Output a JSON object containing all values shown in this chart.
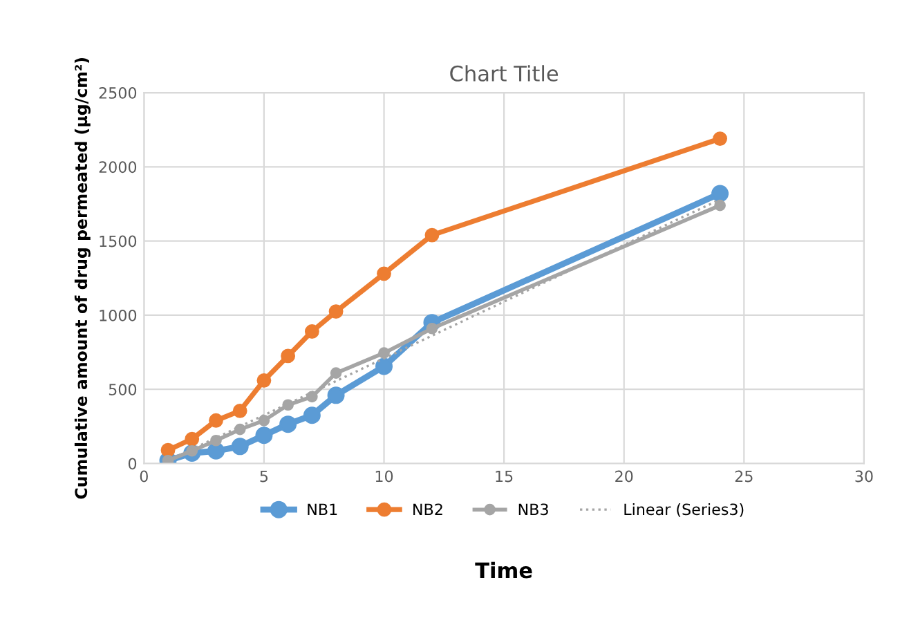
{
  "chart_data": {
    "type": "line",
    "title": "Chart Title",
    "xlabel": "Time",
    "ylabel": "Cumulative amount of drug permeated (µg/cm²)",
    "x": [
      1,
      2,
      3,
      4,
      5,
      6,
      7,
      8,
      10,
      12,
      24
    ],
    "series": [
      {
        "name": "NB1",
        "color": "#5b9bd5",
        "values": [
          20,
          70,
          85,
          115,
          190,
          265,
          325,
          460,
          655,
          950,
          1820
        ]
      },
      {
        "name": "NB2",
        "color": "#ed7d31",
        "values": [
          90,
          165,
          290,
          355,
          560,
          725,
          890,
          1025,
          1280,
          1540,
          2190
        ]
      },
      {
        "name": "NB3",
        "color": "#a5a5a5",
        "values": [
          20,
          85,
          155,
          230,
          290,
          395,
          450,
          610,
          745,
          910,
          1740
        ]
      },
      {
        "name": "Linear (Series3)",
        "color": "#a5a5a5",
        "x": [
          1,
          24
        ],
        "values": [
          20,
          1780
        ],
        "marker": "none",
        "line_style": "dotted"
      }
    ],
    "xlim": [
      0,
      30
    ],
    "xticks": [
      0,
      5,
      10,
      15,
      20,
      25,
      30
    ],
    "ylim": [
      0,
      2500
    ],
    "yticks": [
      0,
      500,
      1000,
      1500,
      2000,
      2500
    ],
    "grid": true,
    "legend": "bottom",
    "marker": "circle",
    "line_style": "solid"
  }
}
